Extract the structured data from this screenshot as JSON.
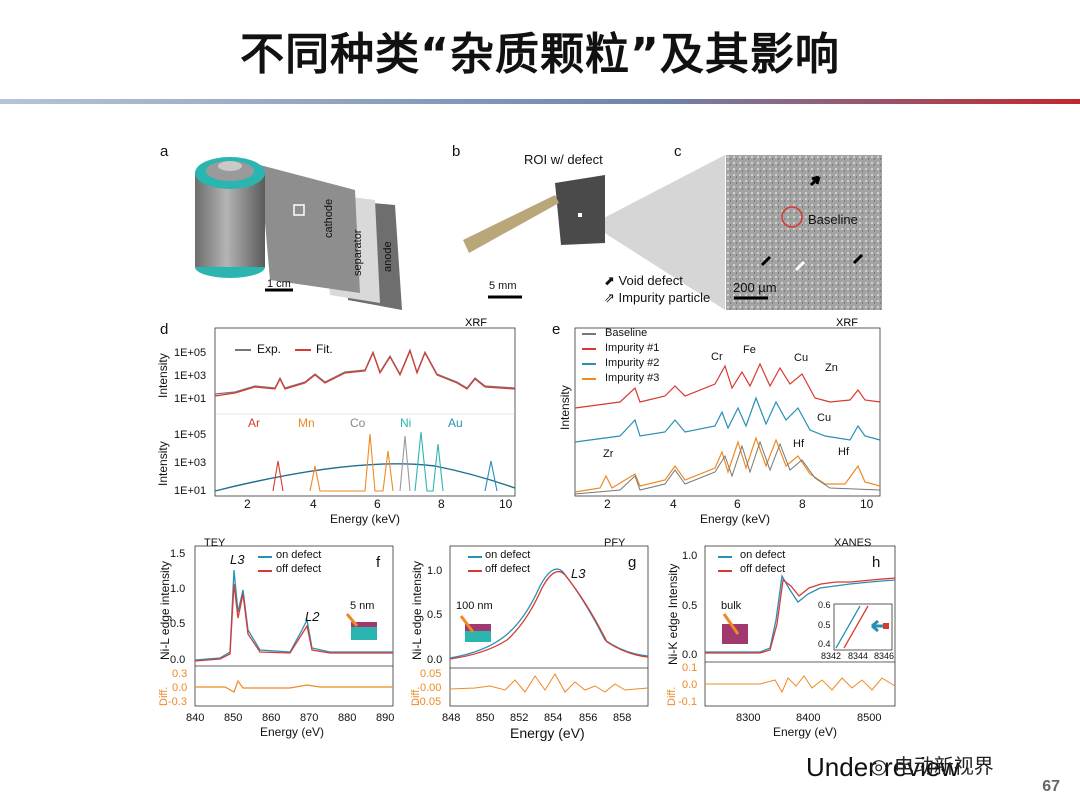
{
  "slide": {
    "title": "不同种类“杂质颗粒”及其影响",
    "page_number": "67",
    "footer_text": "Under review",
    "watermark": "电动新视界"
  },
  "panel_a": {
    "letter": "a",
    "labels": [
      "cathode",
      "separator",
      "anode"
    ],
    "scale": "1 cm"
  },
  "panel_b": {
    "letter": "b",
    "caption": "ROI w/ defect",
    "scale": "5 mm"
  },
  "panel_c": {
    "letter": "c",
    "baseline_label": "Baseline",
    "scale": "200 µm",
    "legend": [
      "Void defect",
      "Impurity particle"
    ]
  },
  "panel_d": {
    "letter": "d",
    "tag": "XRF",
    "ylabel": "Intensity",
    "xlabel": "Energy (keV)",
    "top_legend": [
      "Exp.",
      "Fit."
    ],
    "bottom_legend": [
      "Ar",
      "Mn",
      "Co",
      "Ni",
      "Au"
    ],
    "yticks": [
      "1E+05",
      "1E+03",
      "1E+01"
    ],
    "xticks": [
      "2",
      "4",
      "6",
      "8",
      "10"
    ]
  },
  "panel_e": {
    "letter": "e",
    "tag": "XRF",
    "ylabel": "Intensity",
    "xlabel": "Energy (keV)",
    "legend": [
      "Baseline",
      "Impurity #1",
      "Impurity #2",
      "Impurity #3"
    ],
    "annotations": [
      "Cr",
      "Fe",
      "Cu",
      "Zn",
      "Cu",
      "Hf",
      "Hf",
      "Zr"
    ],
    "xticks": [
      "2",
      "4",
      "6",
      "8",
      "10"
    ]
  },
  "panel_f": {
    "letter": "f",
    "tag": "TEY",
    "ylabel": "Ni-L edge intensity",
    "diff": "Diff.",
    "xlabel": "Energy (eV)",
    "legend": [
      "on defect",
      "off defect"
    ],
    "peaks": [
      "L3",
      "L2"
    ],
    "depth": "5 nm",
    "yticks": [
      "1.5",
      "1.0",
      "0.5",
      "0.0"
    ],
    "dticks": [
      "0.3",
      "0.0",
      "-0.3"
    ],
    "xticks": [
      "840",
      "850",
      "860",
      "870",
      "880",
      "890"
    ]
  },
  "panel_g": {
    "letter": "g",
    "tag": "PFY",
    "ylabel": "Ni-L edge intensity",
    "diff": "Diff.",
    "xlabel": "Energy (eV)",
    "legend": [
      "on defect",
      "off defect"
    ],
    "peak": "L3",
    "depth": "100 nm",
    "yticks": [
      "1.0",
      "0.5",
      "0.0"
    ],
    "dticks": [
      "0.05",
      "0.00",
      "-0.05"
    ],
    "xticks": [
      "848",
      "850",
      "852",
      "854",
      "856",
      "858"
    ]
  },
  "panel_h": {
    "letter": "h",
    "tag": "XANES",
    "ylabel": "Ni-K edge Intensity",
    "diff": "Diff.",
    "xlabel": "Energy (eV)",
    "legend": [
      "on defect",
      "off defect"
    ],
    "depth": "bulk",
    "yticks": [
      "1.0",
      "0.5",
      "0.0"
    ],
    "dticks": [
      "0.1",
      "0.0",
      "-0.1"
    ],
    "xticks": [
      "8300",
      "8400",
      "8500"
    ],
    "inset_yticks": [
      "0.6",
      "0.5",
      "0.4"
    ],
    "inset_xticks": [
      "8342",
      "8344",
      "8346"
    ]
  },
  "colors": {
    "red": "#d83a32",
    "blue": "#2a8fb5",
    "orange": "#ee8a25",
    "gray": "#777777",
    "teal": "#2bb5b0",
    "magenta": "#a03a6e"
  }
}
